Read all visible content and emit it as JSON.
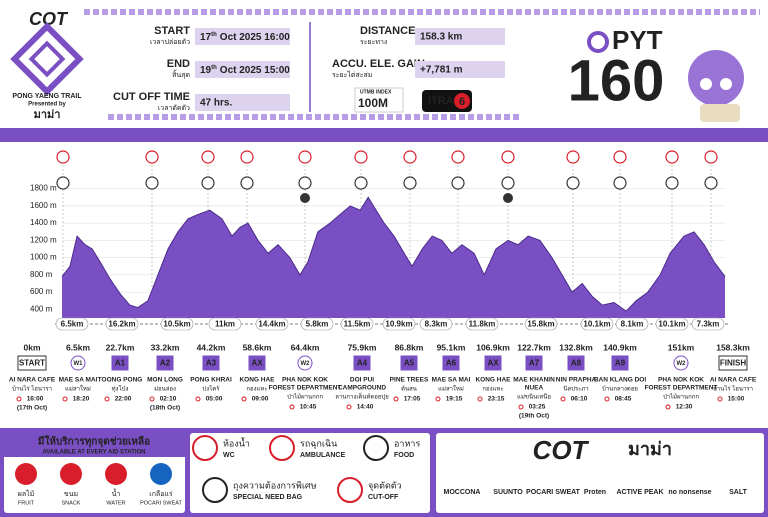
{
  "header": {
    "brand": "COT",
    "logo_title": "PONG YAENG TRAIL",
    "presented_by": "Presented by",
    "presenter": "มาม่า",
    "start": {
      "label": "START",
      "sub": "เวลาปล่อยตัว",
      "day": "17",
      "ord": "th",
      "rest": "Oct 2025  16:00"
    },
    "end": {
      "label": "END",
      "sub": "สิ้นสุด",
      "day": "19",
      "ord": "th",
      "rest": "Oct 2025  15:00"
    },
    "cutoff": {
      "label": "CUT OFF TIME",
      "sub": "เวลาตัดตัว",
      "value": "47 hrs."
    },
    "distance": {
      "label": "DISTANCE",
      "sub": "ระยะทาง",
      "value": "158.3 km"
    },
    "gain": {
      "label": "ACCU. ELE. GAIN",
      "sub": "ระยะไต่สะสม",
      "value": "+7,781 m"
    },
    "utmb": {
      "brand": "UTMB",
      "index": "INDEX",
      "value": "100M"
    },
    "itra": {
      "brand": "iTRA",
      "value": "6"
    },
    "race": {
      "name": "PYT",
      "number": "160"
    }
  },
  "chart_data": {
    "type": "area",
    "color": "#7b4fc4",
    "x": [
      0,
      1.9,
      3.6,
      5.5,
      7.2,
      9.1,
      11.5,
      13.9,
      16.2,
      18.1,
      20.5,
      22.9,
      25.3,
      27.7,
      30.1,
      32.5,
      35.3,
      38.2,
      40.6,
      42.5,
      44.4,
      46.8,
      49.2,
      51.6,
      54.4,
      56.8,
      58.7,
      61.1,
      64.0,
      66.4,
      68.8,
      71.2,
      73.1,
      75.0,
      76.9,
      79.3,
      81.7,
      83.6,
      86.0,
      88.4,
      90.7,
      93.1,
      95.5,
      98.4,
      100.8,
      103.6,
      106.5,
      108.9,
      111.3,
      114.1,
      117.0,
      119.4,
      121.8,
      124.2,
      126.6,
      129.0,
      131.8,
      134.7,
      137.1,
      139.9,
      142.8,
      145.2,
      148.5,
      150.9,
      153.3,
      155.7,
      158.3
    ],
    "values": [
      780,
      900,
      1250,
      1150,
      1100,
      950,
      750,
      580,
      450,
      420,
      500,
      800,
      1100,
      1300,
      1450,
      1500,
      1550,
      1450,
      1250,
      1350,
      1400,
      1200,
      1050,
      1150,
      1000,
      800,
      950,
      1300,
      1400,
      1500,
      1600,
      1550,
      1700,
      1550,
      1400,
      1250,
      1050,
      900,
      1100,
      1250,
      1200,
      1050,
      1150,
      1050,
      800,
      1100,
      1200,
      1150,
      1250,
      1200,
      1000,
      800,
      600,
      700,
      550,
      450,
      480,
      380,
      500,
      600,
      800,
      1050,
      1250,
      1300,
      1150,
      950,
      780
    ],
    "xlim": [
      0,
      158.3
    ],
    "ylim": [
      300,
      1900
    ],
    "yticks": [
      {
        "value": 400,
        "label": "400 m"
      },
      {
        "value": 600,
        "label": "600 m"
      },
      {
        "value": 800,
        "label": "800 m"
      },
      {
        "value": 1000,
        "label": "1000 m"
      },
      {
        "value": 1200,
        "label": "1200 m"
      },
      {
        "value": 1400,
        "label": "1400 m"
      },
      {
        "value": 1600,
        "label": "1600 m"
      },
      {
        "value": 1800,
        "label": "1800 m"
      }
    ],
    "grid": true,
    "segments": [
      "6.5km",
      "16.2km",
      "10.5km",
      "11km",
      "14.4km",
      "5.8km",
      "11.5km",
      "10.9km",
      "8.3km",
      "11.8km",
      "15.8km",
      "10.1km",
      "8.1km",
      "10.1km",
      "7.3km"
    ]
  },
  "stations": [
    {
      "distance": "0km",
      "code": "START",
      "name": [
        "AI NARA CAFE"
      ],
      "thai": "บ้านไร่ ไอนารา",
      "time": "16:00",
      "note": "(17th Oct)"
    },
    {
      "distance": "6.5km",
      "code": "W1",
      "name": [
        "MAE SA MAI"
      ],
      "thai": "แม่สาใหม่",
      "time": "18:20"
    },
    {
      "distance": "22.7km",
      "code": "A1",
      "name": [
        "TOONG PONG"
      ],
      "thai": "ทุ่งโป่ง",
      "time": "22:00"
    },
    {
      "distance": "33.2km",
      "code": "A2",
      "name": [
        "MON LONG"
      ],
      "thai": "ม่อนล่อง",
      "time": "02:10",
      "note": "(18th Oct)"
    },
    {
      "distance": "44.2km",
      "code": "A3",
      "name": [
        "PONG KHRAI"
      ],
      "thai": "ปงไคร้",
      "time": "05:00"
    },
    {
      "distance": "58.6km",
      "code": "AX",
      "name": [
        "KONG HAE"
      ],
      "thai": "กองแหะ",
      "time": "09:00"
    },
    {
      "distance": "64.4km",
      "code": "W2",
      "name": [
        "PHA NOK KOK",
        "FOREST DEPARTMENT"
      ],
      "thai": "ป่าไม้ผานกกก",
      "time": "10:45"
    },
    {
      "distance": "75.9km",
      "code": "A4",
      "name": [
        "DOI PUI",
        "CAMPGROUND"
      ],
      "thai": "ลานกางเต็นท์ดอยปุย",
      "time": "14:40"
    },
    {
      "distance": "86.8km",
      "code": "A5",
      "name": [
        "PINE TREES"
      ],
      "thai": "ต้นสน",
      "time": "17:05"
    },
    {
      "distance": "95.1km",
      "code": "A6",
      "name": [
        "MAE SA MAI"
      ],
      "thai": "แม่สาใหม่",
      "time": "19:15"
    },
    {
      "distance": "106.9km",
      "code": "AX",
      "name": [
        "KONG HAE"
      ],
      "thai": "กองแหะ",
      "time": "23:15"
    },
    {
      "distance": "122.7km",
      "code": "A7",
      "name": [
        "MAE KHANIN",
        "NUEA"
      ],
      "thai": "แม่ขนินเหนือ",
      "time": "03:25",
      "note": "(19th Oct)"
    },
    {
      "distance": "132.8km",
      "code": "A8",
      "name": [
        "NIN PRAPHA"
      ],
      "thai": "นิลประภา",
      "time": "06:10"
    },
    {
      "distance": "140.9km",
      "code": "A9",
      "name": [
        "BAN KLANG DOI"
      ],
      "thai": "บ้านกลางดอย",
      "time": "08:45"
    },
    {
      "distance": "151km",
      "code": "W2",
      "name": [
        "PHA NOK KOK",
        "FOREST DEPARTMENT"
      ],
      "thai": "ป่าไม้ผานกกก",
      "time": "12:30"
    },
    {
      "distance": "158.3km",
      "code": "FINISH",
      "name": [
        "AI NARA CAFE"
      ],
      "thai": "บ้านไร่ ไอนารา",
      "time": "15:00"
    }
  ],
  "legend": {
    "aid_title": "มีให้บริการทุกจุดช่วยเหลือ",
    "aid_subtitle": "AVAILABLE AT EVERY AID STATION",
    "aid_items": [
      {
        "thai": "ผลไม้",
        "en": "FRUIT"
      },
      {
        "thai": "ขนม",
        "en": "SNACK"
      },
      {
        "thai": "น้ำ",
        "en": "WATER"
      },
      {
        "thai": "เกลือแร่",
        "en": "POCARI SWEAT"
      }
    ],
    "icons": [
      {
        "thai": "ห้องน้ำ",
        "en": "WC"
      },
      {
        "thai": "รถฉุกเฉิน",
        "en": "AMBULANCE"
      },
      {
        "thai": "อาหาร",
        "en": "FOOD"
      },
      {
        "thai": "ถุงความต้องการพิเศษ",
        "en": "SPECIAL NEED BAG"
      },
      {
        "thai": "จุดตัดตัว",
        "en": "CUT-OFF"
      }
    ]
  },
  "sponsors": {
    "main": [
      "COT",
      "มาม่า"
    ],
    "others": [
      "MOCCONA",
      "SUUNTO",
      "POCARI SWEAT",
      "Proten",
      "ACTIVE PEAK",
      "no nonsense",
      "SALT"
    ]
  }
}
